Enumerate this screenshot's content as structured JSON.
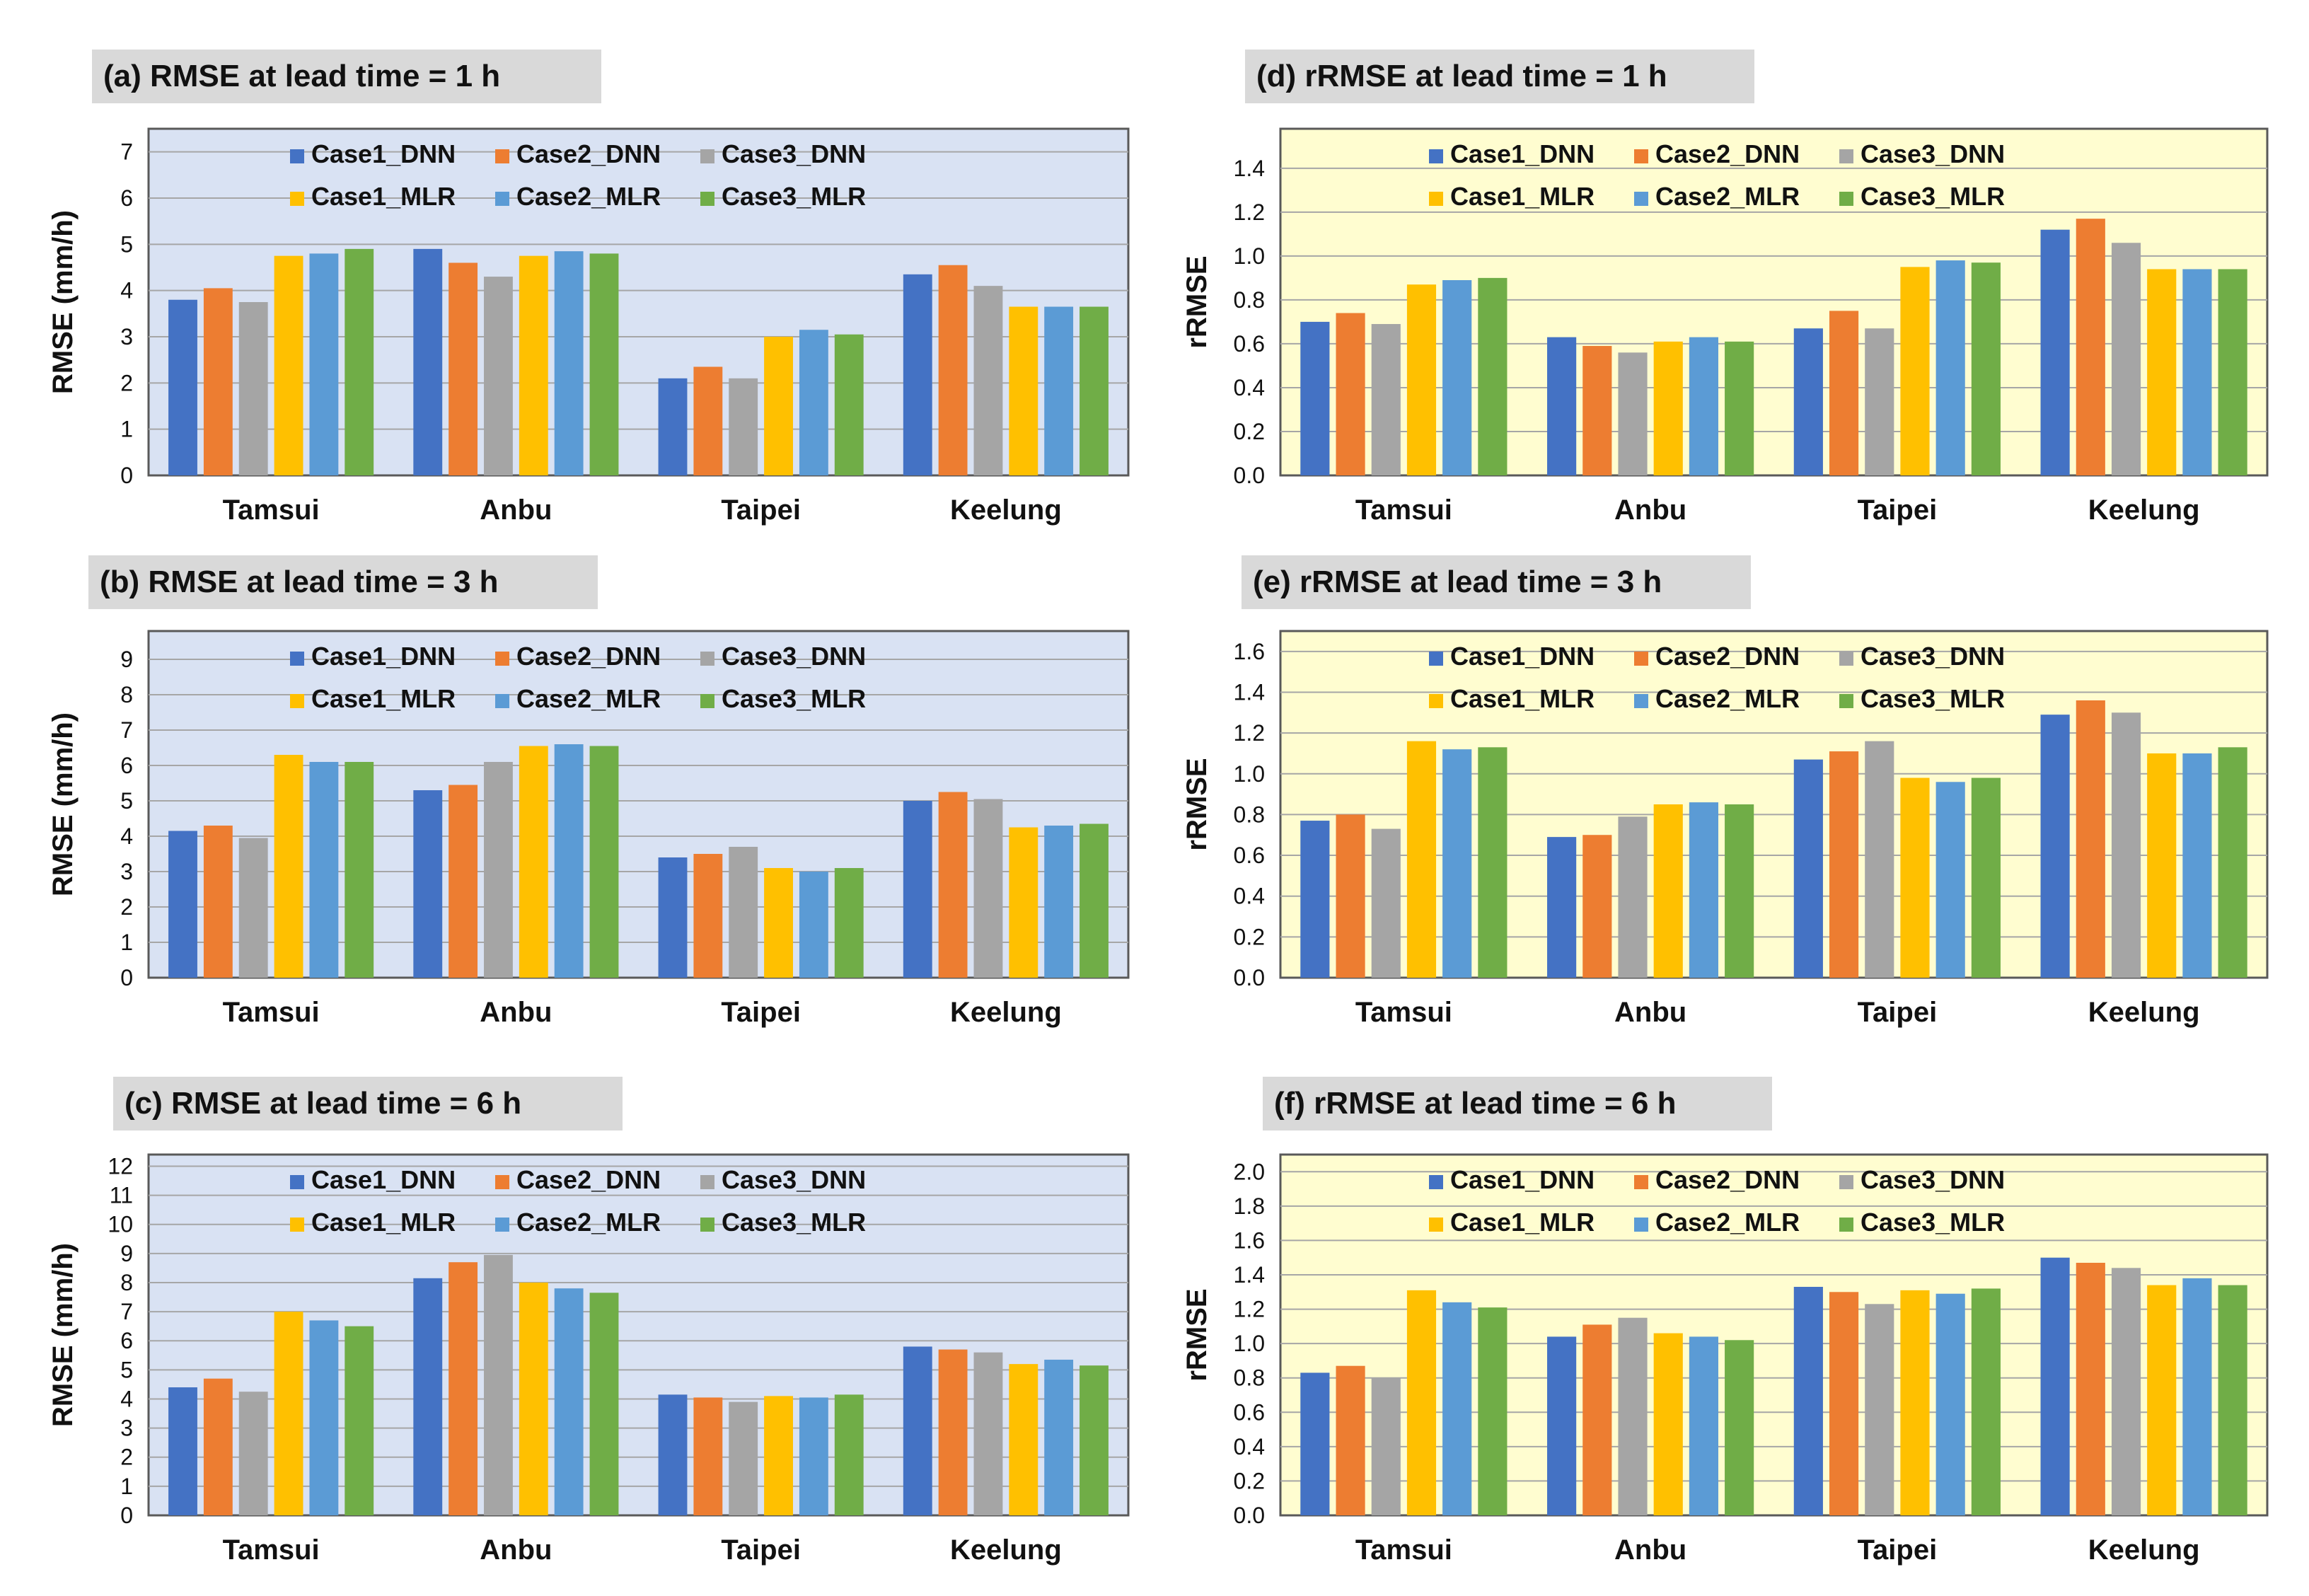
{
  "colors": {
    "series": [
      "#4472c4",
      "#ed7d31",
      "#a5a5a5",
      "#ffc000",
      "#5b9bd5",
      "#70ad47"
    ],
    "rmse_bg": "#d9e2f3",
    "rrmse_bg": "#fffdd0",
    "grid": "#a6a6a6",
    "title_bg": "#d9d9d9"
  },
  "chart_data": [
    {
      "id": "a",
      "type": "bar",
      "title": "(a) RMSE at lead time = 1 h",
      "ylabel": "RMSE (mm/h)",
      "ylim": [
        0,
        7.5
      ],
      "yticks": [
        "0",
        "1",
        "2",
        "3",
        "4",
        "5",
        "6",
        "7"
      ],
      "ytick_values": [
        0,
        1,
        2,
        3,
        4,
        5,
        6,
        7
      ],
      "categories": [
        "Tamsui",
        "Anbu",
        "Taipei",
        "Keelung"
      ],
      "legend": [
        "Case1_DNN",
        "Case2_DNN",
        "Case3_DNN",
        "Case1_MLR",
        "Case2_MLR",
        "Case3_MLR"
      ],
      "series": [
        {
          "name": "Case1_DNN",
          "values": [
            3.8,
            4.9,
            2.1,
            4.35
          ]
        },
        {
          "name": "Case2_DNN",
          "values": [
            4.05,
            4.6,
            2.35,
            4.55
          ]
        },
        {
          "name": "Case3_DNN",
          "values": [
            3.75,
            4.3,
            2.1,
            4.1
          ]
        },
        {
          "name": "Case1_MLR",
          "values": [
            4.75,
            4.75,
            3.0,
            3.65
          ]
        },
        {
          "name": "Case2_MLR",
          "values": [
            4.8,
            4.85,
            3.15,
            3.65
          ]
        },
        {
          "name": "Case3_MLR",
          "values": [
            4.9,
            4.8,
            3.05,
            3.65
          ]
        }
      ]
    },
    {
      "id": "b",
      "type": "bar",
      "title": "(b) RMSE at lead time = 3 h",
      "ylabel": "RMSE (mm/h)",
      "ylim": [
        0,
        9.8
      ],
      "yticks": [
        "0",
        "1",
        "2",
        "3",
        "4",
        "5",
        "6",
        "7",
        "8",
        "9"
      ],
      "ytick_values": [
        0,
        1,
        2,
        3,
        4,
        5,
        6,
        7,
        8,
        9
      ],
      "categories": [
        "Tamsui",
        "Anbu",
        "Taipei",
        "Keelung"
      ],
      "legend": [
        "Case1_DNN",
        "Case2_DNN",
        "Case3_DNN",
        "Case1_MLR",
        "Case2_MLR",
        "Case3_MLR"
      ],
      "series": [
        {
          "name": "Case1_DNN",
          "values": [
            4.15,
            5.3,
            3.4,
            5.0
          ]
        },
        {
          "name": "Case2_DNN",
          "values": [
            4.3,
            5.45,
            3.5,
            5.25
          ]
        },
        {
          "name": "Case3_DNN",
          "values": [
            3.95,
            6.1,
            3.7,
            5.05
          ]
        },
        {
          "name": "Case1_MLR",
          "values": [
            6.3,
            6.55,
            3.1,
            4.25
          ]
        },
        {
          "name": "Case2_MLR",
          "values": [
            6.1,
            6.6,
            3.0,
            4.3
          ]
        },
        {
          "name": "Case3_MLR",
          "values": [
            6.1,
            6.55,
            3.1,
            4.35
          ]
        }
      ]
    },
    {
      "id": "c",
      "type": "bar",
      "title": "(c) RMSE at lead time = 6 h",
      "ylabel": "RMSE (mm/h)",
      "ylim": [
        0,
        12.4
      ],
      "yticks": [
        "0",
        "1",
        "2",
        "3",
        "4",
        "5",
        "6",
        "7",
        "8",
        "9",
        "10",
        "11",
        "12"
      ],
      "ytick_values": [
        0,
        1,
        2,
        3,
        4,
        5,
        6,
        7,
        8,
        9,
        10,
        11,
        12
      ],
      "categories": [
        "Tamsui",
        "Anbu",
        "Taipei",
        "Keelung"
      ],
      "legend": [
        "Case1_DNN",
        "Case2_DNN",
        "Case3_DNN",
        "Case1_MLR",
        "Case2_MLR",
        "Case3_MLR"
      ],
      "series": [
        {
          "name": "Case1_DNN",
          "values": [
            4.4,
            8.15,
            4.15,
            5.8
          ]
        },
        {
          "name": "Case2_DNN",
          "values": [
            4.7,
            8.7,
            4.05,
            5.7
          ]
        },
        {
          "name": "Case3_DNN",
          "values": [
            4.25,
            8.95,
            3.9,
            5.6
          ]
        },
        {
          "name": "Case1_MLR",
          "values": [
            7.0,
            8.0,
            4.1,
            5.2
          ]
        },
        {
          "name": "Case2_MLR",
          "values": [
            6.7,
            7.8,
            4.05,
            5.35
          ]
        },
        {
          "name": "Case3_MLR",
          "values": [
            6.5,
            7.65,
            4.15,
            5.15
          ]
        }
      ]
    },
    {
      "id": "d",
      "type": "bar",
      "title": "(d) rRMSE at lead time = 1 h",
      "ylabel": "rRMSE",
      "ylim": [
        0,
        1.58
      ],
      "yticks": [
        "0.0",
        "0.2",
        "0.4",
        "0.6",
        "0.8",
        "1.0",
        "1.2",
        "1.4"
      ],
      "ytick_values": [
        0,
        0.2,
        0.4,
        0.6,
        0.8,
        1.0,
        1.2,
        1.4
      ],
      "categories": [
        "Tamsui",
        "Anbu",
        "Taipei",
        "Keelung"
      ],
      "legend": [
        "Case1_DNN",
        "Case2_DNN",
        "Case3_DNN",
        "Case1_MLR",
        "Case2_MLR",
        "Case3_MLR"
      ],
      "series": [
        {
          "name": "Case1_DNN",
          "values": [
            0.7,
            0.63,
            0.67,
            1.12
          ]
        },
        {
          "name": "Case2_DNN",
          "values": [
            0.74,
            0.59,
            0.75,
            1.17
          ]
        },
        {
          "name": "Case3_DNN",
          "values": [
            0.69,
            0.56,
            0.67,
            1.06
          ]
        },
        {
          "name": "Case1_MLR",
          "values": [
            0.87,
            0.61,
            0.95,
            0.94
          ]
        },
        {
          "name": "Case2_MLR",
          "values": [
            0.89,
            0.63,
            0.98,
            0.94
          ]
        },
        {
          "name": "Case3_MLR",
          "values": [
            0.9,
            0.61,
            0.97,
            0.94
          ]
        }
      ]
    },
    {
      "id": "e",
      "type": "bar",
      "title": "(e) rRMSE at lead time = 3 h",
      "ylabel": "rRMSE",
      "ylim": [
        0,
        1.7
      ],
      "yticks": [
        "0.0",
        "0.2",
        "0.4",
        "0.6",
        "0.8",
        "1.0",
        "1.2",
        "1.4",
        "1.6"
      ],
      "ytick_values": [
        0,
        0.2,
        0.4,
        0.6,
        0.8,
        1.0,
        1.2,
        1.4,
        1.6
      ],
      "categories": [
        "Tamsui",
        "Anbu",
        "Taipei",
        "Keelung"
      ],
      "legend": [
        "Case1_DNN",
        "Case2_DNN",
        "Case3_DNN",
        "Case1_MLR",
        "Case2_MLR",
        "Case3_MLR"
      ],
      "series": [
        {
          "name": "Case1_DNN",
          "values": [
            0.77,
            0.69,
            1.07,
            1.29
          ]
        },
        {
          "name": "Case2_DNN",
          "values": [
            0.8,
            0.7,
            1.11,
            1.36
          ]
        },
        {
          "name": "Case3_DNN",
          "values": [
            0.73,
            0.79,
            1.16,
            1.3
          ]
        },
        {
          "name": "Case1_MLR",
          "values": [
            1.16,
            0.85,
            0.98,
            1.1
          ]
        },
        {
          "name": "Case2_MLR",
          "values": [
            1.12,
            0.86,
            0.96,
            1.1
          ]
        },
        {
          "name": "Case3_MLR",
          "values": [
            1.13,
            0.85,
            0.98,
            1.13
          ]
        }
      ]
    },
    {
      "id": "f",
      "type": "bar",
      "title": "(f) rRMSE at lead time = 6 h",
      "ylabel": "rRMSE",
      "ylim": [
        0,
        2.1
      ],
      "yticks": [
        "0.0",
        "0.2",
        "0.4",
        "0.6",
        "0.8",
        "1.0",
        "1.2",
        "1.4",
        "1.6",
        "1.8",
        "2.0"
      ],
      "ytick_values": [
        0,
        0.2,
        0.4,
        0.6,
        0.8,
        1.0,
        1.2,
        1.4,
        1.6,
        1.8,
        2.0
      ],
      "categories": [
        "Tamsui",
        "Anbu",
        "Taipei",
        "Keelung"
      ],
      "legend": [
        "Case1_DNN",
        "Case2_DNN",
        "Case3_DNN",
        "Case1_MLR",
        "Case2_MLR",
        "Case3_MLR"
      ],
      "series": [
        {
          "name": "Case1_DNN",
          "values": [
            0.83,
            1.04,
            1.33,
            1.5
          ]
        },
        {
          "name": "Case2_DNN",
          "values": [
            0.87,
            1.11,
            1.3,
            1.47
          ]
        },
        {
          "name": "Case3_DNN",
          "values": [
            0.8,
            1.15,
            1.23,
            1.44
          ]
        },
        {
          "name": "Case1_MLR",
          "values": [
            1.31,
            1.06,
            1.31,
            1.34
          ]
        },
        {
          "name": "Case2_MLR",
          "values": [
            1.24,
            1.04,
            1.29,
            1.38
          ]
        },
        {
          "name": "Case3_MLR",
          "values": [
            1.21,
            1.02,
            1.32,
            1.34
          ]
        }
      ]
    }
  ]
}
